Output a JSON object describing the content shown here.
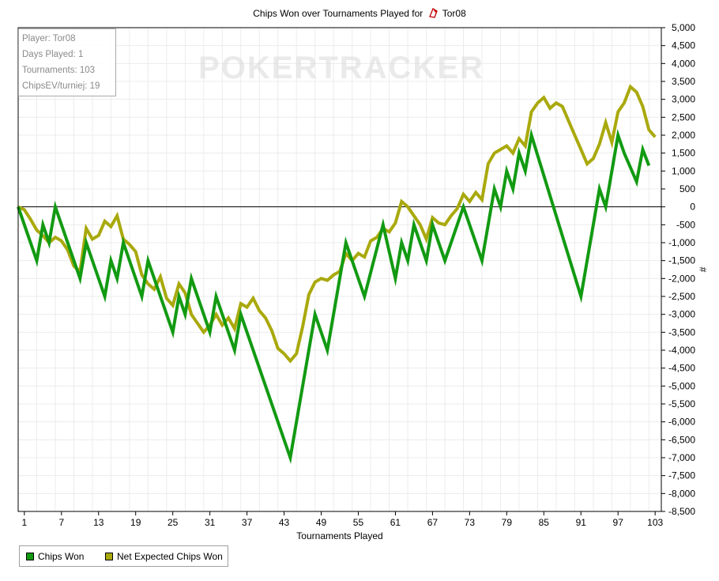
{
  "chart_data": {
    "type": "line",
    "title": "Chips Won over Tournaments Played for",
    "player_name": "Tor08",
    "xlabel": "Tournaments Played",
    "ylabel": "#",
    "x_ticks": [
      1,
      7,
      13,
      19,
      25,
      31,
      37,
      43,
      49,
      55,
      61,
      67,
      73,
      79,
      85,
      91,
      97,
      103
    ],
    "y_ticks": [
      5000,
      4500,
      4000,
      3500,
      3000,
      2500,
      2000,
      1500,
      1000,
      500,
      0,
      -500,
      -1000,
      -1500,
      -2000,
      -2500,
      -3000,
      -3500,
      -4000,
      -4500,
      -5000,
      -5500,
      -6000,
      -6500,
      -7000,
      -7500,
      -8000,
      -8500
    ],
    "y_tick_labels": [
      "5,000",
      "4,500",
      "4,000",
      "3,500",
      "3,000",
      "2,500",
      "2,000",
      "1,500",
      "1,000",
      "500",
      "0",
      "-500",
      "-1,000",
      "-1,500",
      "-2,000",
      "-2,500",
      "-3,000",
      "-3,500",
      "-4,000",
      "-4,500",
      "-5,000",
      "-5,500",
      "-6,000",
      "-6,500",
      "-7,000",
      "-7,500",
      "-8,000",
      "-8,500"
    ],
    "xlim": [
      0,
      104
    ],
    "ylim": [
      -8500,
      5000
    ],
    "grid": true,
    "legend_position": "bottom-left",
    "watermark": "POKERTRACKER",
    "series": [
      {
        "name": "Chips Won",
        "color": "#129a12",
        "points": [
          [
            0,
            0
          ],
          [
            3,
            -1500
          ],
          [
            4,
            -500
          ],
          [
            5,
            -1000
          ],
          [
            6,
            0
          ],
          [
            10,
            -2000
          ],
          [
            11,
            -1000
          ],
          [
            14,
            -2500
          ],
          [
            15,
            -1500
          ],
          [
            16,
            -2000
          ],
          [
            17,
            -1000
          ],
          [
            20,
            -2500
          ],
          [
            21,
            -1500
          ],
          [
            25,
            -3500
          ],
          [
            26,
            -2500
          ],
          [
            27,
            -3000
          ],
          [
            28,
            -2000
          ],
          [
            31,
            -3500
          ],
          [
            32,
            -2500
          ],
          [
            35,
            -4000
          ],
          [
            36,
            -3000
          ],
          [
            44,
            -7000
          ],
          [
            48,
            -3000
          ],
          [
            50,
            -4000
          ],
          [
            53,
            -1000
          ],
          [
            56,
            -2500
          ],
          [
            59,
            -500
          ],
          [
            61,
            -2000
          ],
          [
            62,
            -1000
          ],
          [
            63,
            -1500
          ],
          [
            64,
            -500
          ],
          [
            66,
            -1500
          ],
          [
            67,
            -500
          ],
          [
            69,
            -1500
          ],
          [
            72,
            0
          ],
          [
            75,
            -1500
          ],
          [
            77,
            500
          ],
          [
            78,
            0
          ],
          [
            79,
            1000
          ],
          [
            80,
            500
          ],
          [
            81,
            1500
          ],
          [
            82,
            1000
          ],
          [
            83,
            2000
          ],
          [
            91,
            -2500
          ],
          [
            94,
            500
          ],
          [
            95,
            0
          ],
          [
            97,
            2000
          ],
          [
            98,
            1500
          ],
          [
            100,
            700
          ],
          [
            101,
            1600
          ],
          [
            102,
            1150
          ]
        ]
      },
      {
        "name": "Net Expected Chips Won",
        "color": "#a9a90d",
        "points": [
          [
            0,
            0
          ],
          [
            1,
            -80
          ],
          [
            2,
            -350
          ],
          [
            3,
            -650
          ],
          [
            4,
            -800
          ],
          [
            5,
            -1000
          ],
          [
            6,
            -850
          ],
          [
            7,
            -950
          ],
          [
            8,
            -1200
          ],
          [
            9,
            -1650
          ],
          [
            10,
            -1800
          ],
          [
            11,
            -600
          ],
          [
            12,
            -900
          ],
          [
            13,
            -800
          ],
          [
            14,
            -400
          ],
          [
            15,
            -550
          ],
          [
            16,
            -250
          ],
          [
            17,
            -900
          ],
          [
            18,
            -1050
          ],
          [
            19,
            -1250
          ],
          [
            20,
            -1900
          ],
          [
            21,
            -2150
          ],
          [
            22,
            -2300
          ],
          [
            23,
            -1950
          ],
          [
            24,
            -2550
          ],
          [
            25,
            -2750
          ],
          [
            26,
            -2150
          ],
          [
            27,
            -2400
          ],
          [
            28,
            -3000
          ],
          [
            29,
            -3250
          ],
          [
            30,
            -3500
          ],
          [
            31,
            -3300
          ],
          [
            32,
            -3000
          ],
          [
            33,
            -3300
          ],
          [
            34,
            -3100
          ],
          [
            35,
            -3400
          ],
          [
            36,
            -2700
          ],
          [
            37,
            -2800
          ],
          [
            38,
            -2550
          ],
          [
            39,
            -2900
          ],
          [
            40,
            -3100
          ],
          [
            41,
            -3450
          ],
          [
            42,
            -3950
          ],
          [
            43,
            -4100
          ],
          [
            44,
            -4300
          ],
          [
            45,
            -4100
          ],
          [
            46,
            -3350
          ],
          [
            47,
            -2450
          ],
          [
            48,
            -2100
          ],
          [
            49,
            -2000
          ],
          [
            50,
            -2050
          ],
          [
            51,
            -1900
          ],
          [
            52,
            -1800
          ],
          [
            53,
            -1300
          ],
          [
            54,
            -1500
          ],
          [
            55,
            -1300
          ],
          [
            56,
            -1400
          ],
          [
            57,
            -950
          ],
          [
            58,
            -850
          ],
          [
            59,
            -600
          ],
          [
            60,
            -700
          ],
          [
            61,
            -450
          ],
          [
            62,
            150
          ],
          [
            63,
            0
          ],
          [
            64,
            -250
          ],
          [
            65,
            -500
          ],
          [
            66,
            -900
          ],
          [
            67,
            -300
          ],
          [
            68,
            -450
          ],
          [
            69,
            -500
          ],
          [
            70,
            -250
          ],
          [
            71,
            -50
          ],
          [
            72,
            350
          ],
          [
            73,
            150
          ],
          [
            74,
            400
          ],
          [
            75,
            200
          ],
          [
            76,
            1200
          ],
          [
            77,
            1500
          ],
          [
            78,
            1600
          ],
          [
            79,
            1700
          ],
          [
            80,
            1500
          ],
          [
            81,
            1900
          ],
          [
            82,
            1700
          ],
          [
            83,
            2650
          ],
          [
            84,
            2900
          ],
          [
            85,
            3050
          ],
          [
            86,
            2750
          ],
          [
            87,
            2900
          ],
          [
            88,
            2800
          ],
          [
            89,
            2400
          ],
          [
            90,
            2000
          ],
          [
            91,
            1600
          ],
          [
            92,
            1200
          ],
          [
            93,
            1350
          ],
          [
            94,
            1750
          ],
          [
            95,
            2350
          ],
          [
            96,
            1800
          ],
          [
            97,
            2650
          ],
          [
            98,
            2900
          ],
          [
            99,
            3350
          ],
          [
            100,
            3200
          ],
          [
            101,
            2800
          ],
          [
            102,
            2150
          ],
          [
            103,
            1950
          ]
        ]
      }
    ]
  },
  "info_box": {
    "player": "Player: Tor08",
    "days_played": "Days Played: 1",
    "tournaments": "Tournaments: 103",
    "chips_ev": "ChipsEV/turniej: 19"
  },
  "legend": {
    "items": [
      {
        "label": "Chips Won",
        "color": "#129a12"
      },
      {
        "label": "Net Expected Chips Won",
        "color": "#a9a90d"
      }
    ]
  },
  "icons": {
    "title_logo": "pokertracker-logo-icon"
  }
}
